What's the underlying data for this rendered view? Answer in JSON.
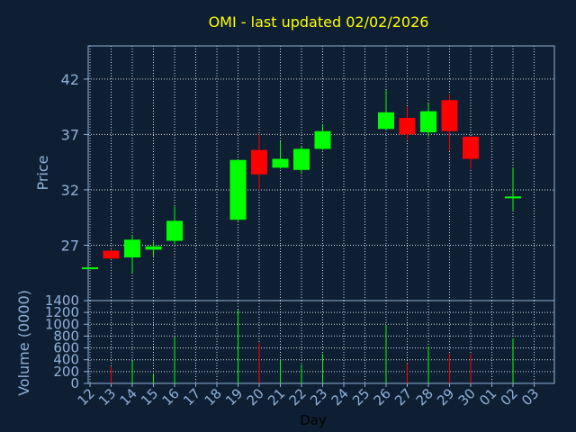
{
  "chart_data": {
    "type": "candlestick",
    "title": "OMI - last updated 02/02/2026",
    "xlabel": "Day",
    "x": [
      "12",
      "13",
      "14",
      "15",
      "16",
      "17",
      "18",
      "19",
      "20",
      "21",
      "22",
      "23",
      "24",
      "25",
      "26",
      "27",
      "28",
      "29",
      "30",
      "01",
      "02",
      "03"
    ],
    "price_panel": {
      "ylabel": "Price",
      "ylim": [
        22,
        45
      ],
      "yticks": [
        27,
        32,
        37,
        42
      ],
      "grid": true,
      "up_color": "#00ff00",
      "down_color": "#ff0000",
      "candles": [
        {
          "day": "12",
          "open": 25.0,
          "high": 25.0,
          "low": 25.0,
          "close": 25.0
        },
        {
          "day": "13",
          "open": 26.5,
          "high": 26.6,
          "low": 25.8,
          "close": 25.8
        },
        {
          "day": "14",
          "open": 25.9,
          "high": 27.9,
          "low": 24.5,
          "close": 27.5
        },
        {
          "day": "15",
          "open": 26.6,
          "high": 27.3,
          "low": 26.0,
          "close": 26.9
        },
        {
          "day": "16",
          "open": 27.4,
          "high": 30.5,
          "low": 27.1,
          "close": 29.2
        },
        {
          "day": "19",
          "open": 29.3,
          "high": 34.7,
          "low": 29.2,
          "close": 34.7
        },
        {
          "day": "20",
          "open": 35.6,
          "high": 37.0,
          "low": 32.0,
          "close": 33.4
        },
        {
          "day": "21",
          "open": 34.0,
          "high": 36.4,
          "low": 33.9,
          "close": 34.8
        },
        {
          "day": "22",
          "open": 33.8,
          "high": 35.9,
          "low": 33.5,
          "close": 35.7
        },
        {
          "day": "23",
          "open": 35.7,
          "high": 37.9,
          "low": 35.6,
          "close": 37.3
        },
        {
          "day": "26",
          "open": 37.5,
          "high": 41.0,
          "low": 37.4,
          "close": 39.0
        },
        {
          "day": "27",
          "open": 38.5,
          "high": 39.5,
          "low": 36.6,
          "close": 37.0
        },
        {
          "day": "28",
          "open": 37.2,
          "high": 39.8,
          "low": 36.8,
          "close": 39.1
        },
        {
          "day": "29",
          "open": 40.1,
          "high": 40.6,
          "low": 35.5,
          "close": 37.3
        },
        {
          "day": "30",
          "open": 36.8,
          "high": 36.8,
          "low": 33.9,
          "close": 34.8
        },
        {
          "day": "02",
          "open": 31.4,
          "high": 34.0,
          "low": 30.1,
          "close": 31.4
        }
      ]
    },
    "volume_panel": {
      "ylabel": "Volume (0000)",
      "ylim": [
        0,
        1400
      ],
      "yticks": [
        0,
        200,
        400,
        600,
        800,
        1000,
        1200,
        1400
      ],
      "grid": true,
      "bars": [
        {
          "day": "12",
          "value": 0,
          "color": "#00ff00"
        },
        {
          "day": "13",
          "value": 280,
          "color": "#ff0000"
        },
        {
          "day": "14",
          "value": 380,
          "color": "#00ff00"
        },
        {
          "day": "15",
          "value": 160,
          "color": "#00ff00"
        },
        {
          "day": "16",
          "value": 790,
          "color": "#00ff00"
        },
        {
          "day": "19",
          "value": 1250,
          "color": "#00ff00"
        },
        {
          "day": "20",
          "value": 680,
          "color": "#ff0000"
        },
        {
          "day": "21",
          "value": 390,
          "color": "#00ff00"
        },
        {
          "day": "22",
          "value": 320,
          "color": "#00ff00"
        },
        {
          "day": "23",
          "value": 500,
          "color": "#00ff00"
        },
        {
          "day": "26",
          "value": 990,
          "color": "#00ff00"
        },
        {
          "day": "27",
          "value": 340,
          "color": "#ff0000"
        },
        {
          "day": "28",
          "value": 620,
          "color": "#00ff00"
        },
        {
          "day": "29",
          "value": 500,
          "color": "#ff0000"
        },
        {
          "day": "30",
          "value": 500,
          "color": "#ff0000"
        },
        {
          "day": "02",
          "value": 760,
          "color": "#00ff00"
        }
      ]
    },
    "colors": {
      "background": "#0f1f33",
      "axis": "#8fb0d8",
      "grid": "#d8d8d8",
      "title": "#ffff00",
      "xlabel": "#000000"
    }
  }
}
